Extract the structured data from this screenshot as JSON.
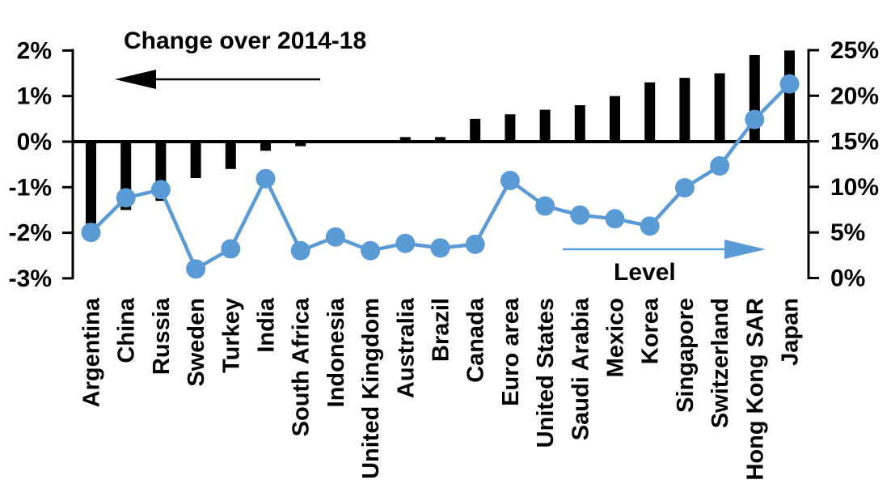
{
  "chart_data": {
    "type": "bar",
    "subtype": "combo-bar-line-dual-axis",
    "categories": [
      "Argentina",
      "China",
      "Russia",
      "Sweden",
      "Turkey",
      "India",
      "South Africa",
      "Indonesia",
      "United Kingdom",
      "Australia",
      "Brazil",
      "Canada",
      "Euro area",
      "United States",
      "Saudi Arabia",
      "Mexico",
      "Korea",
      "Singapore",
      "Switzerland",
      "Hong Kong SAR",
      "Japan"
    ],
    "series": [
      {
        "name": "Change over 2014-18",
        "type": "bar",
        "axis": "left",
        "color": "#000000",
        "values": [
          -1.8,
          -1.5,
          -1.3,
          -0.8,
          -0.6,
          -0.2,
          -0.1,
          0,
          0,
          0.1,
          0.1,
          0.5,
          0.6,
          0.7,
          0.8,
          1.0,
          1.3,
          1.4,
          1.5,
          1.9,
          2.0
        ]
      },
      {
        "name": "Level",
        "type": "line",
        "axis": "right",
        "color": "#5B9BD5",
        "values": [
          5.0,
          8.8,
          9.7,
          1.0,
          3.2,
          10.9,
          3.0,
          4.5,
          3.0,
          3.8,
          3.3,
          3.7,
          10.7,
          7.9,
          6.9,
          6.5,
          5.7,
          9.9,
          12.3,
          17.4,
          21.3
        ]
      }
    ],
    "left_axis": {
      "ticks": [
        "2%",
        "1%",
        "0%",
        "-1%",
        "-2%",
        "-3%"
      ],
      "min": -3,
      "max": 2
    },
    "right_axis": {
      "ticks": [
        "25%",
        "20%",
        "15%",
        "10%",
        "5%",
        "0%"
      ],
      "min": 0,
      "max": 25
    },
    "grid": "off",
    "legend": "none",
    "annotations": [
      {
        "text": "Change over 2014-18",
        "arrow": "left",
        "arrow_color": "#000000"
      },
      {
        "text": "Level",
        "arrow": "right",
        "arrow_color": "#5B9BD5"
      }
    ]
  }
}
